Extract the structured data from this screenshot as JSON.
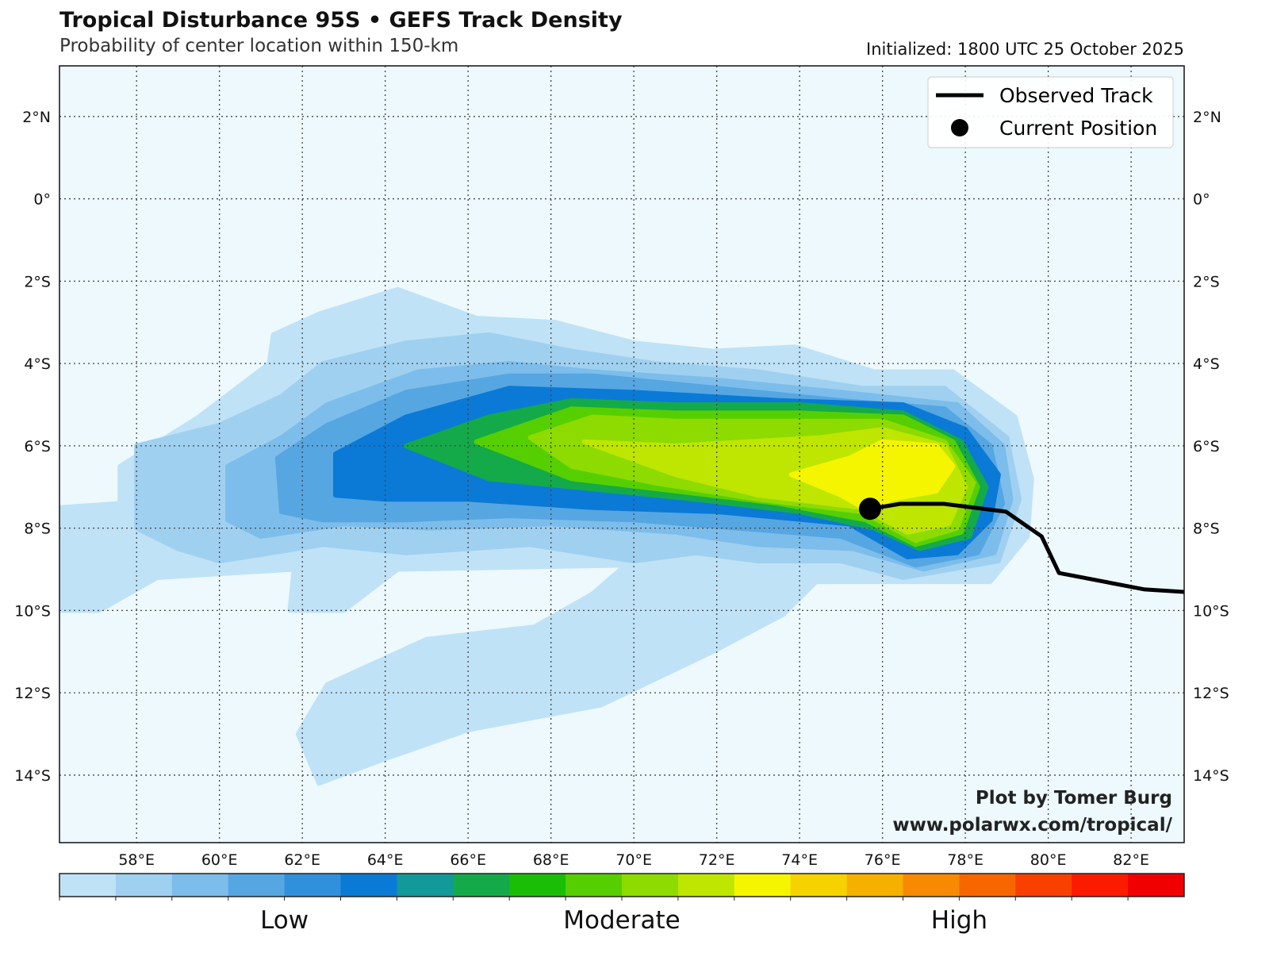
{
  "title": "Tropical Disturbance 95S • GEFS Track Density",
  "subtitle": "Probability of center location within 150-km",
  "initialized": "Initialized: 1800 UTC 25 October 2025",
  "legend": {
    "observed": "Observed Track",
    "current": "Current Position"
  },
  "credit": {
    "line1": "Plot by Tomer Burg",
    "line2": "www.polarwx.com/tropical/"
  },
  "chart_data": {
    "type": "heatmap",
    "extent": {
      "lon": [
        56.14,
        83.28
      ],
      "lat": [
        -15.64,
        3.23
      ]
    },
    "lon_ticks": [
      {
        "v": 58,
        "l": "58°E"
      },
      {
        "v": 60,
        "l": "60°E"
      },
      {
        "v": 62,
        "l": "62°E"
      },
      {
        "v": 64,
        "l": "64°E"
      },
      {
        "v": 66,
        "l": "66°E"
      },
      {
        "v": 68,
        "l": "68°E"
      },
      {
        "v": 70,
        "l": "70°E"
      },
      {
        "v": 72,
        "l": "72°E"
      },
      {
        "v": 74,
        "l": "74°E"
      },
      {
        "v": 76,
        "l": "76°E"
      },
      {
        "v": 78,
        "l": "78°E"
      },
      {
        "v": 80,
        "l": "80°E"
      },
      {
        "v": 82,
        "l": "82°E"
      }
    ],
    "lat_ticks": [
      {
        "v": 2,
        "l": "2°N"
      },
      {
        "v": 0,
        "l": "0°"
      },
      {
        "v": -2,
        "l": "2°S"
      },
      {
        "v": -4,
        "l": "4°S"
      },
      {
        "v": -6,
        "l": "6°S"
      },
      {
        "v": -8,
        "l": "8°S"
      },
      {
        "v": -10,
        "l": "10°S"
      },
      {
        "v": -12,
        "l": "12°S"
      },
      {
        "v": -14,
        "l": "14°S"
      }
    ],
    "colorbar": {
      "colors": [
        "#bfe2f7",
        "#a0d0f0",
        "#7dbdeb",
        "#56a6e2",
        "#3090dc",
        "#0a7ad6",
        "#12999a",
        "#14aa4a",
        "#1abe06",
        "#56cf00",
        "#8ddb00",
        "#bee600",
        "#f5f500",
        "#f6d200",
        "#f6b000",
        "#f78a00",
        "#f86600",
        "#fa4000",
        "#fb1c00",
        "#f00000"
      ],
      "labels": [
        {
          "pos": 0.2,
          "l": "Low"
        },
        {
          "pos": 0.5,
          "l": "Moderate"
        },
        {
          "pos": 0.8,
          "l": "High"
        }
      ]
    },
    "density_levels": [
      {
        "color": "#bfe2f7",
        "poly": [
          [
            56.14,
            -7.5
          ],
          [
            57.6,
            -7.4
          ],
          [
            57.6,
            -6.5
          ],
          [
            59.5,
            -5.3
          ],
          [
            61.2,
            -4.0
          ],
          [
            61.3,
            -3.3
          ],
          [
            62.4,
            -2.8
          ],
          [
            64.3,
            -2.2
          ],
          [
            66.2,
            -2.9
          ],
          [
            68.1,
            -3.0
          ],
          [
            70.0,
            -3.5
          ],
          [
            71.9,
            -3.7
          ],
          [
            73.9,
            -3.6
          ],
          [
            75.8,
            -4.2
          ],
          [
            77.7,
            -4.2
          ],
          [
            79.2,
            -5.3
          ],
          [
            79.6,
            -6.8
          ],
          [
            79.5,
            -8.2
          ],
          [
            78.6,
            -9.3
          ],
          [
            74.4,
            -9.3
          ],
          [
            73.6,
            -10.1
          ],
          [
            71.9,
            -11.0
          ],
          [
            69.2,
            -12.3
          ],
          [
            66.0,
            -12.9
          ],
          [
            64.0,
            -13.6
          ],
          [
            62.4,
            -14.2
          ],
          [
            61.9,
            -13.0
          ],
          [
            62.6,
            -11.8
          ],
          [
            65.0,
            -10.7
          ],
          [
            67.6,
            -10.4
          ],
          [
            69.0,
            -9.6
          ],
          [
            69.8,
            -8.9
          ],
          [
            64.3,
            -9.0
          ],
          [
            63.0,
            -10.0
          ],
          [
            61.7,
            -10.0
          ],
          [
            61.8,
            -9.0
          ],
          [
            58.5,
            -9.2
          ],
          [
            57.1,
            -10.0
          ],
          [
            56.14,
            -10.0
          ]
        ]
      },
      {
        "color": "#a0d0f0",
        "poly": [
          [
            58.0,
            -8.0
          ],
          [
            58.0,
            -6.0
          ],
          [
            60.0,
            -5.5
          ],
          [
            61.5,
            -4.8
          ],
          [
            62.5,
            -4.0
          ],
          [
            64.5,
            -3.5
          ],
          [
            66.5,
            -3.3
          ],
          [
            68.5,
            -3.7
          ],
          [
            70.5,
            -4.0
          ],
          [
            73.0,
            -4.2
          ],
          [
            75.5,
            -4.6
          ],
          [
            77.5,
            -4.6
          ],
          [
            79.0,
            -5.8
          ],
          [
            79.3,
            -7.3
          ],
          [
            78.8,
            -8.8
          ],
          [
            76.5,
            -9.2
          ],
          [
            75.0,
            -8.8
          ],
          [
            73.0,
            -8.8
          ],
          [
            71.5,
            -8.6
          ],
          [
            70.0,
            -8.8
          ],
          [
            67.5,
            -8.4
          ],
          [
            64.5,
            -8.6
          ],
          [
            62.5,
            -8.4
          ],
          [
            60.0,
            -8.8
          ],
          [
            59.0,
            -8.5
          ]
        ]
      },
      {
        "color": "#7dbdeb",
        "poly": [
          [
            60.2,
            -7.8
          ],
          [
            60.2,
            -6.5
          ],
          [
            61.5,
            -5.8
          ],
          [
            62.6,
            -5.0
          ],
          [
            64.8,
            -4.2
          ],
          [
            67.0,
            -4.0
          ],
          [
            69.0,
            -4.2
          ],
          [
            72.0,
            -4.4
          ],
          [
            75.0,
            -4.7
          ],
          [
            77.8,
            -5.0
          ],
          [
            78.9,
            -6.0
          ],
          [
            79.1,
            -7.3
          ],
          [
            78.7,
            -8.6
          ],
          [
            77.0,
            -9.0
          ],
          [
            75.3,
            -8.5
          ],
          [
            73.0,
            -8.4
          ],
          [
            71.0,
            -8.1
          ],
          [
            68.0,
            -7.9
          ],
          [
            65.0,
            -8.0
          ],
          [
            63.0,
            -7.9
          ],
          [
            61.0,
            -8.2
          ]
        ]
      },
      {
        "color": "#56a6e2",
        "poly": [
          [
            61.5,
            -7.6
          ],
          [
            61.4,
            -6.3
          ],
          [
            62.6,
            -5.5
          ],
          [
            64.5,
            -4.7
          ],
          [
            67.0,
            -4.3
          ],
          [
            69.0,
            -4.3
          ],
          [
            72.0,
            -4.6
          ],
          [
            75.0,
            -4.9
          ],
          [
            77.5,
            -5.1
          ],
          [
            78.6,
            -6.0
          ],
          [
            78.9,
            -7.4
          ],
          [
            78.3,
            -8.6
          ],
          [
            76.8,
            -8.9
          ],
          [
            75.0,
            -8.2
          ],
          [
            72.5,
            -8.0
          ],
          [
            70.0,
            -7.8
          ],
          [
            67.0,
            -7.7
          ],
          [
            64.5,
            -7.8
          ],
          [
            62.5,
            -7.8
          ]
        ]
      },
      {
        "color": "#0a7ad6",
        "poly": [
          [
            62.8,
            -7.2
          ],
          [
            62.8,
            -6.2
          ],
          [
            64.5,
            -5.3
          ],
          [
            67.0,
            -4.6
          ],
          [
            70.0,
            -4.7
          ],
          [
            73.5,
            -4.9
          ],
          [
            76.5,
            -5.0
          ],
          [
            78.0,
            -5.6
          ],
          [
            78.8,
            -6.7
          ],
          [
            78.6,
            -7.8
          ],
          [
            77.8,
            -8.6
          ],
          [
            76.6,
            -8.7
          ],
          [
            75.2,
            -7.9
          ],
          [
            72.0,
            -7.6
          ],
          [
            69.0,
            -7.5
          ],
          [
            66.0,
            -7.3
          ],
          [
            64.0,
            -7.3
          ]
        ]
      },
      {
        "color": "#14aa4a",
        "poly": [
          [
            64.5,
            -6.0
          ],
          [
            66.5,
            -5.3
          ],
          [
            68.5,
            -4.9
          ],
          [
            71.0,
            -5.0
          ],
          [
            74.0,
            -5.0
          ],
          [
            76.5,
            -5.2
          ],
          [
            77.9,
            -5.9
          ],
          [
            78.5,
            -7.0
          ],
          [
            78.1,
            -8.2
          ],
          [
            76.9,
            -8.5
          ],
          [
            75.8,
            -8.0
          ],
          [
            74.0,
            -7.6
          ],
          [
            71.5,
            -7.3
          ],
          [
            68.5,
            -7.0
          ],
          [
            66.5,
            -6.8
          ]
        ]
      },
      {
        "color": "#56cf00",
        "poly": [
          [
            66.2,
            -5.9
          ],
          [
            68.5,
            -5.1
          ],
          [
            71.0,
            -5.2
          ],
          [
            74.0,
            -5.2
          ],
          [
            76.5,
            -5.3
          ],
          [
            77.7,
            -5.9
          ],
          [
            78.3,
            -7.0
          ],
          [
            77.9,
            -8.1
          ],
          [
            76.8,
            -8.4
          ],
          [
            75.6,
            -7.8
          ],
          [
            73.5,
            -7.4
          ],
          [
            71.0,
            -7.1
          ],
          [
            68.5,
            -6.8
          ]
        ]
      },
      {
        "color": "#8ddb00",
        "poly": [
          [
            67.5,
            -5.8
          ],
          [
            69.0,
            -5.3
          ],
          [
            71.0,
            -5.4
          ],
          [
            73.5,
            -5.4
          ],
          [
            76.0,
            -5.4
          ],
          [
            77.5,
            -5.9
          ],
          [
            78.2,
            -6.9
          ],
          [
            77.8,
            -8.0
          ],
          [
            76.8,
            -8.3
          ],
          [
            75.5,
            -7.6
          ],
          [
            73.0,
            -7.3
          ],
          [
            70.5,
            -6.9
          ],
          [
            68.5,
            -6.5
          ]
        ]
      },
      {
        "color": "#bee600",
        "poly": [
          [
            68.8,
            -5.9
          ],
          [
            71.0,
            -6.0
          ],
          [
            74.5,
            -5.8
          ],
          [
            76.0,
            -5.6
          ],
          [
            77.5,
            -6.0
          ],
          [
            78.0,
            -7.0
          ],
          [
            77.6,
            -7.9
          ],
          [
            76.6,
            -8.1
          ],
          [
            75.5,
            -7.5
          ],
          [
            73.0,
            -7.2
          ],
          [
            71.0,
            -6.7
          ]
        ]
      },
      {
        "color": "#f5f500",
        "poly": [
          [
            73.8,
            -6.7
          ],
          [
            75.2,
            -6.3
          ],
          [
            76.0,
            -5.9
          ],
          [
            77.3,
            -6.0
          ],
          [
            77.7,
            -6.5
          ],
          [
            77.3,
            -7.1
          ],
          [
            76.2,
            -7.3
          ],
          [
            75.7,
            -7.6
          ],
          [
            75.0,
            -7.2
          ]
        ]
      }
    ],
    "observed_track": [
      [
        75.7,
        -7.53
      ],
      [
        76.43,
        -7.41
      ],
      [
        77.48,
        -7.41
      ],
      [
        78.98,
        -7.6
      ],
      [
        79.84,
        -8.2
      ],
      [
        80.26,
        -9.09
      ],
      [
        82.33,
        -9.49
      ],
      [
        83.28,
        -9.55
      ]
    ],
    "current_position": [
      75.7,
      -7.53
    ]
  }
}
